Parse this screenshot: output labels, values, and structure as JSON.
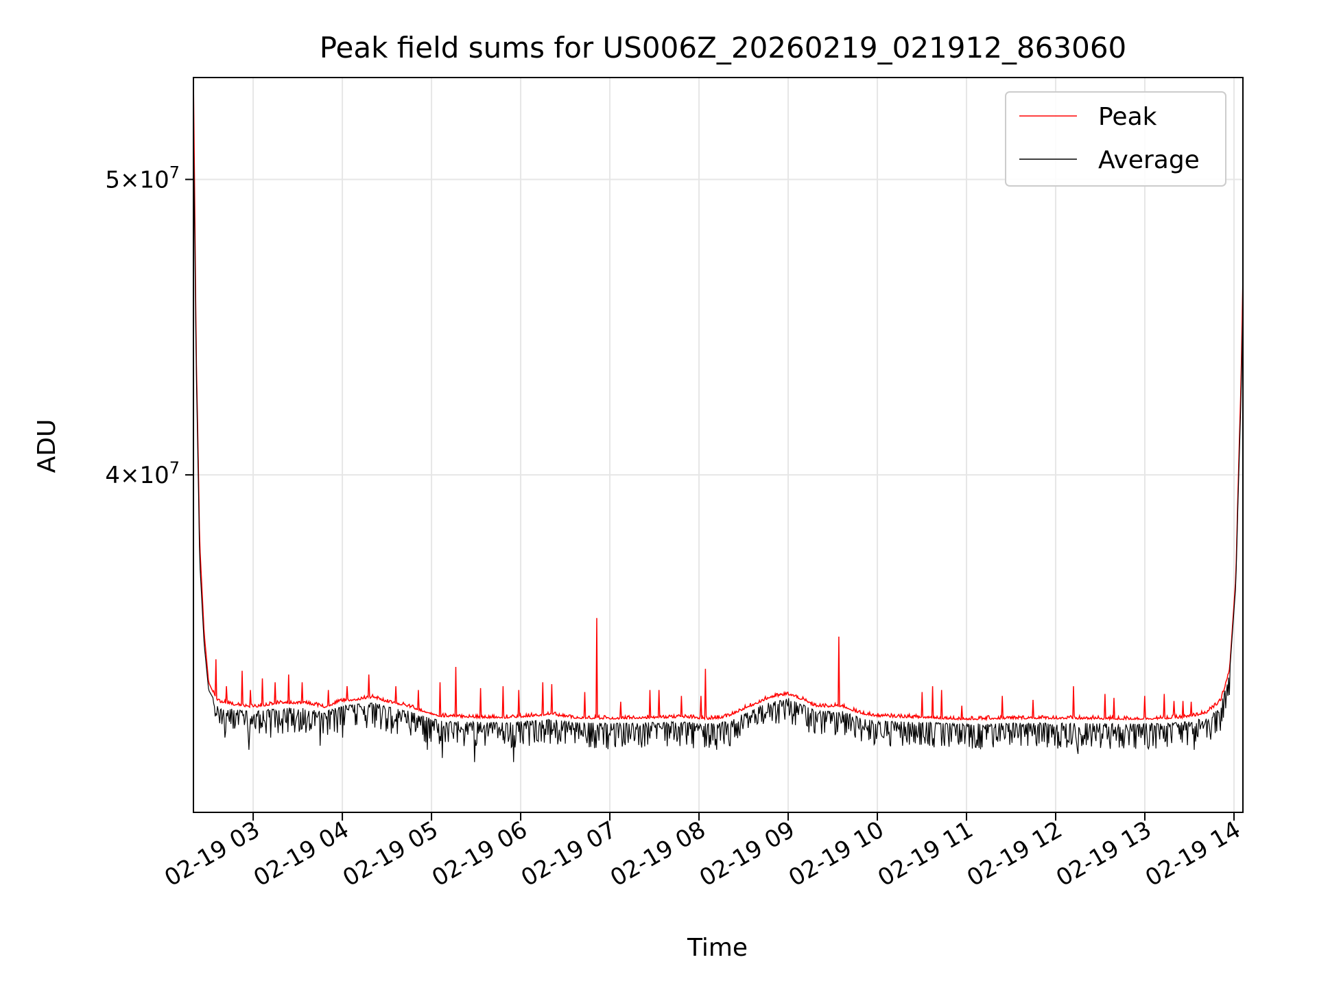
{
  "chart_data": {
    "type": "line",
    "title": "Peak field sums for US006Z_20260219_021912_863060",
    "xlabel": "Time",
    "ylabel": "ADU",
    "yscale": "log",
    "grid": true,
    "legend_position": "top-right",
    "xlim_hours": [
      2.33,
      14.1
    ],
    "ylim": [
      31000000,
      54000000
    ],
    "x_ticks": [
      {
        "hour": 3,
        "label": "02-19 03"
      },
      {
        "hour": 4,
        "label": "02-19 04"
      },
      {
        "hour": 5,
        "label": "02-19 05"
      },
      {
        "hour": 6,
        "label": "02-19 06"
      },
      {
        "hour": 7,
        "label": "02-19 07"
      },
      {
        "hour": 8,
        "label": "02-19 08"
      },
      {
        "hour": 9,
        "label": "02-19 09"
      },
      {
        "hour": 10,
        "label": "02-19 10"
      },
      {
        "hour": 11,
        "label": "02-19 11"
      },
      {
        "hour": 12,
        "label": "02-19 12"
      },
      {
        "hour": 13,
        "label": "02-19 13"
      },
      {
        "hour": 14,
        "label": "02-19 14"
      }
    ],
    "y_ticks": [
      {
        "value": 40000000,
        "base": "4",
        "exp": "7"
      },
      {
        "value": 50000000,
        "base": "5",
        "exp": "7"
      }
    ],
    "series": [
      {
        "name": "Peak",
        "color": "#ff0000",
        "baseline": [
          [
            2.33,
            54000000
          ],
          [
            2.36,
            44000000
          ],
          [
            2.4,
            38000000
          ],
          [
            2.45,
            35500000
          ],
          [
            2.5,
            34200000
          ],
          [
            2.6,
            33700000
          ],
          [
            2.8,
            33600000
          ],
          [
            3.0,
            33550000
          ],
          [
            3.3,
            33650000
          ],
          [
            3.6,
            33650000
          ],
          [
            3.8,
            33550000
          ],
          [
            4.0,
            33700000
          ],
          [
            4.2,
            33750000
          ],
          [
            4.35,
            33800000
          ],
          [
            4.5,
            33680000
          ],
          [
            4.7,
            33600000
          ],
          [
            4.9,
            33450000
          ],
          [
            5.1,
            33320000
          ],
          [
            5.4,
            33300000
          ],
          [
            5.8,
            33280000
          ],
          [
            6.1,
            33320000
          ],
          [
            6.35,
            33360000
          ],
          [
            6.6,
            33280000
          ],
          [
            7.0,
            33260000
          ],
          [
            7.5,
            33280000
          ],
          [
            7.8,
            33300000
          ],
          [
            8.1,
            33250000
          ],
          [
            8.3,
            33300000
          ],
          [
            8.55,
            33550000
          ],
          [
            8.8,
            33800000
          ],
          [
            9.0,
            33880000
          ],
          [
            9.15,
            33750000
          ],
          [
            9.3,
            33580000
          ],
          [
            9.45,
            33560000
          ],
          [
            9.6,
            33580000
          ],
          [
            9.8,
            33400000
          ],
          [
            10.0,
            33320000
          ],
          [
            10.3,
            33300000
          ],
          [
            10.6,
            33280000
          ],
          [
            10.9,
            33250000
          ],
          [
            11.0,
            33240000
          ],
          [
            11.3,
            33260000
          ],
          [
            11.8,
            33270000
          ],
          [
            12.3,
            33260000
          ],
          [
            12.8,
            33250000
          ],
          [
            13.2,
            33260000
          ],
          [
            13.5,
            33300000
          ],
          [
            13.7,
            33420000
          ],
          [
            13.85,
            33700000
          ],
          [
            13.95,
            34500000
          ],
          [
            14.02,
            37000000
          ],
          [
            14.08,
            43000000
          ],
          [
            14.1,
            46500000
          ]
        ],
        "spikes": [
          [
            2.58,
            34800000
          ],
          [
            2.7,
            34100000
          ],
          [
            2.88,
            34500000
          ],
          [
            2.97,
            34000000
          ],
          [
            3.1,
            34300000
          ],
          [
            3.25,
            34200000
          ],
          [
            3.4,
            34400000
          ],
          [
            3.55,
            34200000
          ],
          [
            3.84,
            34000000
          ],
          [
            4.05,
            34100000
          ],
          [
            4.3,
            34400000
          ],
          [
            4.6,
            34100000
          ],
          [
            4.85,
            34000000
          ],
          [
            5.1,
            34200000
          ],
          [
            5.27,
            34600000
          ],
          [
            5.55,
            34050000
          ],
          [
            5.8,
            34100000
          ],
          [
            5.98,
            34000000
          ],
          [
            6.25,
            34200000
          ],
          [
            6.35,
            34150000
          ],
          [
            6.72,
            33950000
          ],
          [
            6.85,
            35900000
          ],
          [
            7.12,
            33700000
          ],
          [
            7.45,
            34000000
          ],
          [
            7.55,
            34000000
          ],
          [
            7.8,
            33850000
          ],
          [
            8.02,
            33850000
          ],
          [
            8.07,
            34550000
          ],
          [
            9.57,
            35400000
          ],
          [
            10.5,
            33950000
          ],
          [
            10.62,
            34100000
          ],
          [
            10.72,
            34000000
          ],
          [
            10.95,
            33600000
          ],
          [
            11.4,
            33850000
          ],
          [
            11.75,
            33750000
          ],
          [
            12.2,
            34100000
          ],
          [
            12.55,
            33900000
          ],
          [
            12.65,
            33800000
          ],
          [
            13.0,
            33850000
          ],
          [
            13.22,
            33900000
          ],
          [
            13.33,
            33720000
          ],
          [
            13.43,
            33720000
          ],
          [
            13.52,
            33700000
          ]
        ]
      },
      {
        "name": "Average",
        "color": "#000000",
        "baseline": [
          [
            2.33,
            52000000
          ],
          [
            2.36,
            43500000
          ],
          [
            2.4,
            37500000
          ],
          [
            2.45,
            35200000
          ],
          [
            2.5,
            34000000
          ],
          [
            2.6,
            33600000
          ],
          [
            2.8,
            33500000
          ],
          [
            3.0,
            33450000
          ],
          [
            3.3,
            33550000
          ],
          [
            3.6,
            33550000
          ],
          [
            3.8,
            33450000
          ],
          [
            4.0,
            33600000
          ],
          [
            4.2,
            33650000
          ],
          [
            4.35,
            33700000
          ],
          [
            4.5,
            33580000
          ],
          [
            4.7,
            33500000
          ],
          [
            4.9,
            33350000
          ],
          [
            5.1,
            33220000
          ],
          [
            5.4,
            33200000
          ],
          [
            5.8,
            33180000
          ],
          [
            6.1,
            33220000
          ],
          [
            6.35,
            33260000
          ],
          [
            6.6,
            33180000
          ],
          [
            7.0,
            33160000
          ],
          [
            7.5,
            33180000
          ],
          [
            7.8,
            33200000
          ],
          [
            8.1,
            33150000
          ],
          [
            8.3,
            33200000
          ],
          [
            8.55,
            33450000
          ],
          [
            8.8,
            33700000
          ],
          [
            9.0,
            33800000
          ],
          [
            9.15,
            33650000
          ],
          [
            9.3,
            33480000
          ],
          [
            9.45,
            33460000
          ],
          [
            9.6,
            33480000
          ],
          [
            9.8,
            33300000
          ],
          [
            10.0,
            33220000
          ],
          [
            10.3,
            33200000
          ],
          [
            10.6,
            33180000
          ],
          [
            10.9,
            33150000
          ],
          [
            11.0,
            33140000
          ],
          [
            11.3,
            33160000
          ],
          [
            11.8,
            33170000
          ],
          [
            12.3,
            33160000
          ],
          [
            12.8,
            33150000
          ],
          [
            13.2,
            33160000
          ],
          [
            13.5,
            33200000
          ],
          [
            13.7,
            33320000
          ],
          [
            13.85,
            33600000
          ],
          [
            13.95,
            34400000
          ],
          [
            14.02,
            36800000
          ],
          [
            14.08,
            42500000
          ],
          [
            14.1,
            45500000
          ]
        ],
        "dips": [
          [
            2.68,
            32800000
          ],
          [
            2.95,
            32500000
          ],
          [
            3.2,
            32800000
          ],
          [
            3.75,
            32600000
          ],
          [
            4.0,
            32800000
          ],
          [
            4.55,
            32900000
          ],
          [
            4.95,
            32500000
          ],
          [
            5.12,
            32300000
          ],
          [
            5.48,
            32200000
          ],
          [
            5.6,
            32600000
          ],
          [
            5.92,
            32200000
          ],
          [
            6.45,
            32700000
          ],
          [
            6.8,
            32700000
          ],
          [
            7.35,
            32700000
          ],
          [
            7.75,
            32700000
          ],
          [
            8.2,
            32500000
          ],
          [
            8.35,
            32600000
          ],
          [
            9.75,
            32800000
          ],
          [
            10.45,
            32800000
          ],
          [
            10.95,
            32700000
          ],
          [
            11.35,
            32700000
          ],
          [
            11.85,
            32700000
          ],
          [
            12.25,
            32400000
          ],
          [
            12.6,
            32700000
          ],
          [
            13.05,
            32600000
          ],
          [
            13.55,
            32500000
          ]
        ]
      }
    ]
  }
}
